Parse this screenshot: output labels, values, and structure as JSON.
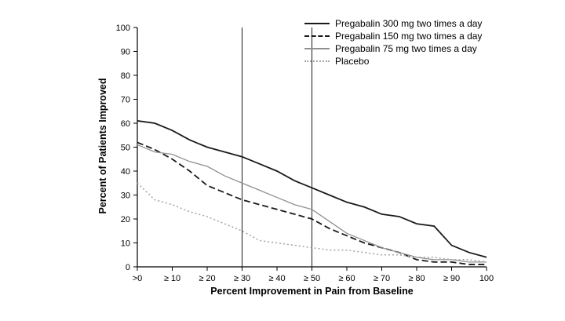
{
  "chart_data": {
    "type": "line",
    "title": "",
    "xlabel": "Percent Improvement in Pain from Baseline",
    "ylabel": "Percent of Patients Improved",
    "xlim": [
      0,
      100
    ],
    "ylim": [
      0,
      100
    ],
    "ytick_step": 10,
    "xtick_values": [
      0,
      10,
      20,
      30,
      40,
      50,
      60,
      70,
      80,
      90,
      100
    ],
    "xtick_labels": [
      ">0",
      "≥ 10",
      "≥ 20",
      "≥ 30",
      "≥ 40",
      "≥ 50",
      "≥ 60",
      "≥ 70",
      "≥ 80",
      "≥ 90",
      "100"
    ],
    "grid": false,
    "legend_position": "top-right",
    "reference_lines_x": [
      30,
      50
    ],
    "x": [
      0,
      5,
      10,
      15,
      20,
      25,
      30,
      35,
      40,
      45,
      50,
      55,
      60,
      65,
      70,
      75,
      80,
      85,
      90,
      95,
      100
    ],
    "series": [
      {
        "name": "Pregabalin 300 mg two times a day",
        "color": "#1a1a1a",
        "dash": "solid",
        "width": 1.8,
        "values": [
          61,
          60,
          57,
          53,
          50,
          48,
          46,
          43,
          40,
          36,
          33,
          30,
          27,
          25,
          22,
          21,
          18,
          17,
          9,
          6,
          4
        ]
      },
      {
        "name": "Pregabalin 150 mg two times a day",
        "color": "#1a1a1a",
        "dash": "dashed",
        "width": 1.8,
        "values": [
          52,
          49,
          45,
          40,
          34,
          31,
          28,
          26,
          24,
          22,
          20,
          16,
          13,
          10,
          8,
          6,
          3,
          2,
          2,
          1,
          1
        ]
      },
      {
        "name": "Pregabalin 75 mg two times a day",
        "color": "#909090",
        "dash": "solid",
        "width": 1.3,
        "values": [
          51,
          48,
          47,
          44,
          42,
          38,
          35,
          32,
          29,
          26,
          24,
          19,
          14,
          11,
          8,
          6,
          4,
          3,
          3,
          2,
          2
        ]
      },
      {
        "name": "Placebo",
        "color": "#a8a8a8",
        "dash": "dotted",
        "width": 1.6,
        "values": [
          35,
          28,
          26,
          23,
          21,
          18,
          15,
          11,
          10,
          9,
          8,
          7,
          7,
          6,
          5,
          5,
          4,
          4,
          3,
          3,
          2
        ]
      }
    ]
  }
}
